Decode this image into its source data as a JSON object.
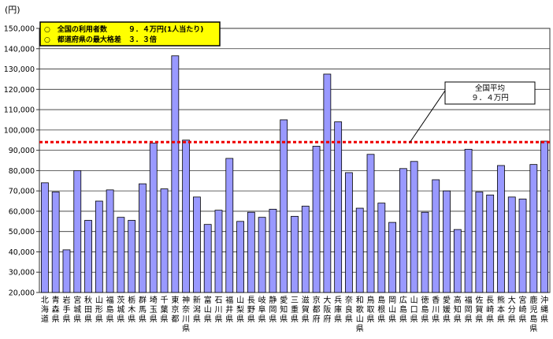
{
  "chart_data": {
    "type": "bar",
    "unit_label": "(円)",
    "legend_box": {
      "line1": "○　全国の利用者数　　　９．４万円(1人当たり)",
      "line2": "○　都道府県の最大格差　３．３倍"
    },
    "reference_line": {
      "value": 94000,
      "label_line1": "全国平均",
      "label_line2": "９．４万円",
      "color": "#ee0000"
    },
    "ylim": [
      20000,
      150000
    ],
    "yticks": [
      "20,000",
      "30,000",
      "40,000",
      "50,000",
      "60,000",
      "70,000",
      "80,000",
      "90,000",
      "100,000",
      "110,000",
      "120,000",
      "130,000",
      "140,000",
      "150,000"
    ],
    "grid": true,
    "bar_color": "#9999ff",
    "categories": [
      [
        "北",
        "海",
        "道"
      ],
      [
        "青",
        "森",
        "県"
      ],
      [
        "岩",
        "手",
        "県"
      ],
      [
        "宮",
        "城",
        "県"
      ],
      [
        "秋",
        "田",
        "県"
      ],
      [
        "山",
        "形",
        "県"
      ],
      [
        "福",
        "島",
        "県"
      ],
      [
        "茨",
        "城",
        "県"
      ],
      [
        "栃",
        "木",
        "県"
      ],
      [
        "群",
        "馬",
        "県"
      ],
      [
        "埼",
        "玉",
        "県"
      ],
      [
        "千",
        "葉",
        "県"
      ],
      [
        "東",
        "京",
        "都"
      ],
      [
        "神",
        "奈",
        "川",
        "県"
      ],
      [
        "新",
        "潟",
        "県"
      ],
      [
        "富",
        "山",
        "県"
      ],
      [
        "石",
        "川",
        "県"
      ],
      [
        "福",
        "井",
        "県"
      ],
      [
        "山",
        "梨",
        "県"
      ],
      [
        "長",
        "野",
        "県"
      ],
      [
        "岐",
        "阜",
        "県"
      ],
      [
        "静",
        "岡",
        "県"
      ],
      [
        "愛",
        "知",
        "県"
      ],
      [
        "三",
        "重",
        "県"
      ],
      [
        "滋",
        "賀",
        "県"
      ],
      [
        "京",
        "都",
        "府"
      ],
      [
        "大",
        "阪",
        "府"
      ],
      [
        "兵",
        "庫",
        "県"
      ],
      [
        "奈",
        "良",
        "県"
      ],
      [
        "和",
        "歌",
        "山",
        "県"
      ],
      [
        "鳥",
        "取",
        "県"
      ],
      [
        "島",
        "根",
        "県"
      ],
      [
        "岡",
        "山",
        "県"
      ],
      [
        "広",
        "島",
        "県"
      ],
      [
        "山",
        "口",
        "県"
      ],
      [
        "徳",
        "島",
        "県"
      ],
      [
        "香",
        "川",
        "県"
      ],
      [
        "愛",
        "媛",
        "県"
      ],
      [
        "高",
        "知",
        "県"
      ],
      [
        "福",
        "岡",
        "県"
      ],
      [
        "佐",
        "賀",
        "県"
      ],
      [
        "長",
        "崎",
        "県"
      ],
      [
        "熊",
        "本",
        "県"
      ],
      [
        "大",
        "分",
        "県"
      ],
      [
        "宮",
        "崎",
        "県"
      ],
      [
        "鹿",
        "児",
        "島",
        "県"
      ],
      [
        "沖",
        "縄",
        "県"
      ]
    ],
    "values": [
      74000,
      69500,
      41000,
      80000,
      55500,
      65000,
      70500,
      57000,
      55500,
      73500,
      93500,
      71000,
      136500,
      95000,
      67000,
      53500,
      60500,
      86000,
      55000,
      59500,
      57000,
      61000,
      105000,
      57500,
      62500,
      92000,
      127500,
      104000,
      79000,
      61500,
      88000,
      64000,
      54500,
      81000,
      84500,
      59500,
      75500,
      70000,
      51000,
      90500,
      69500,
      68000,
      82500,
      67000,
      66000,
      83000,
      94500
    ]
  }
}
